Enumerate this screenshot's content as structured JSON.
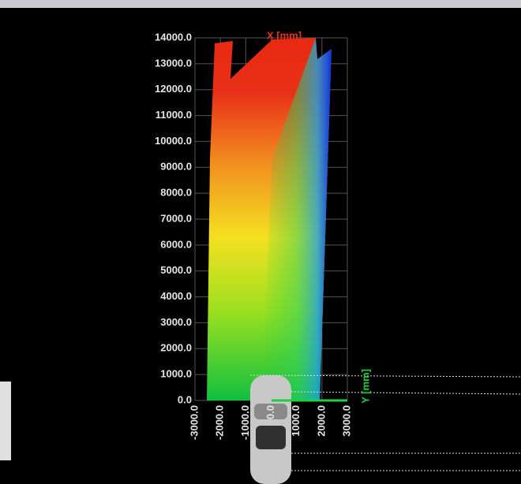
{
  "chart_data": {
    "type": "heatmap",
    "xlabel": "X [mm]",
    "ylabel": "Y [mm]",
    "xlim": [
      -3000,
      3000
    ],
    "xticks": [
      {
        "value": -3000,
        "label": "-3000.0"
      },
      {
        "value": -2000,
        "label": "-2000.0"
      },
      {
        "value": -1000,
        "label": "-1000.0"
      },
      {
        "value": 0,
        "label": "0.0"
      },
      {
        "value": 1000,
        "label": "1000.0"
      },
      {
        "value": 2000,
        "label": "2000.0"
      },
      {
        "value": 3000,
        "label": "3000.0"
      }
    ],
    "ylim": [
      0,
      14000
    ],
    "yticks": [
      {
        "value": 0,
        "label": "0.0"
      },
      {
        "value": 1000,
        "label": "1000.0"
      },
      {
        "value": 2000,
        "label": "2000.0"
      },
      {
        "value": 3000,
        "label": "3000.0"
      },
      {
        "value": 4000,
        "label": "4000.0"
      },
      {
        "value": 5000,
        "label": "5000.0"
      },
      {
        "value": 6000,
        "label": "6000.0"
      },
      {
        "value": 7000,
        "label": "7000.0"
      },
      {
        "value": 8000,
        "label": "8000.0"
      },
      {
        "value": 9000,
        "label": "9000.0"
      },
      {
        "value": 10000,
        "label": "10000.0"
      },
      {
        "value": 11000,
        "label": "11000.0"
      },
      {
        "value": 12000,
        "label": "12000.0"
      },
      {
        "value": 13000,
        "label": "13000.0"
      },
      {
        "value": 14000,
        "label": "14000.0"
      }
    ],
    "grid": true
  }
}
